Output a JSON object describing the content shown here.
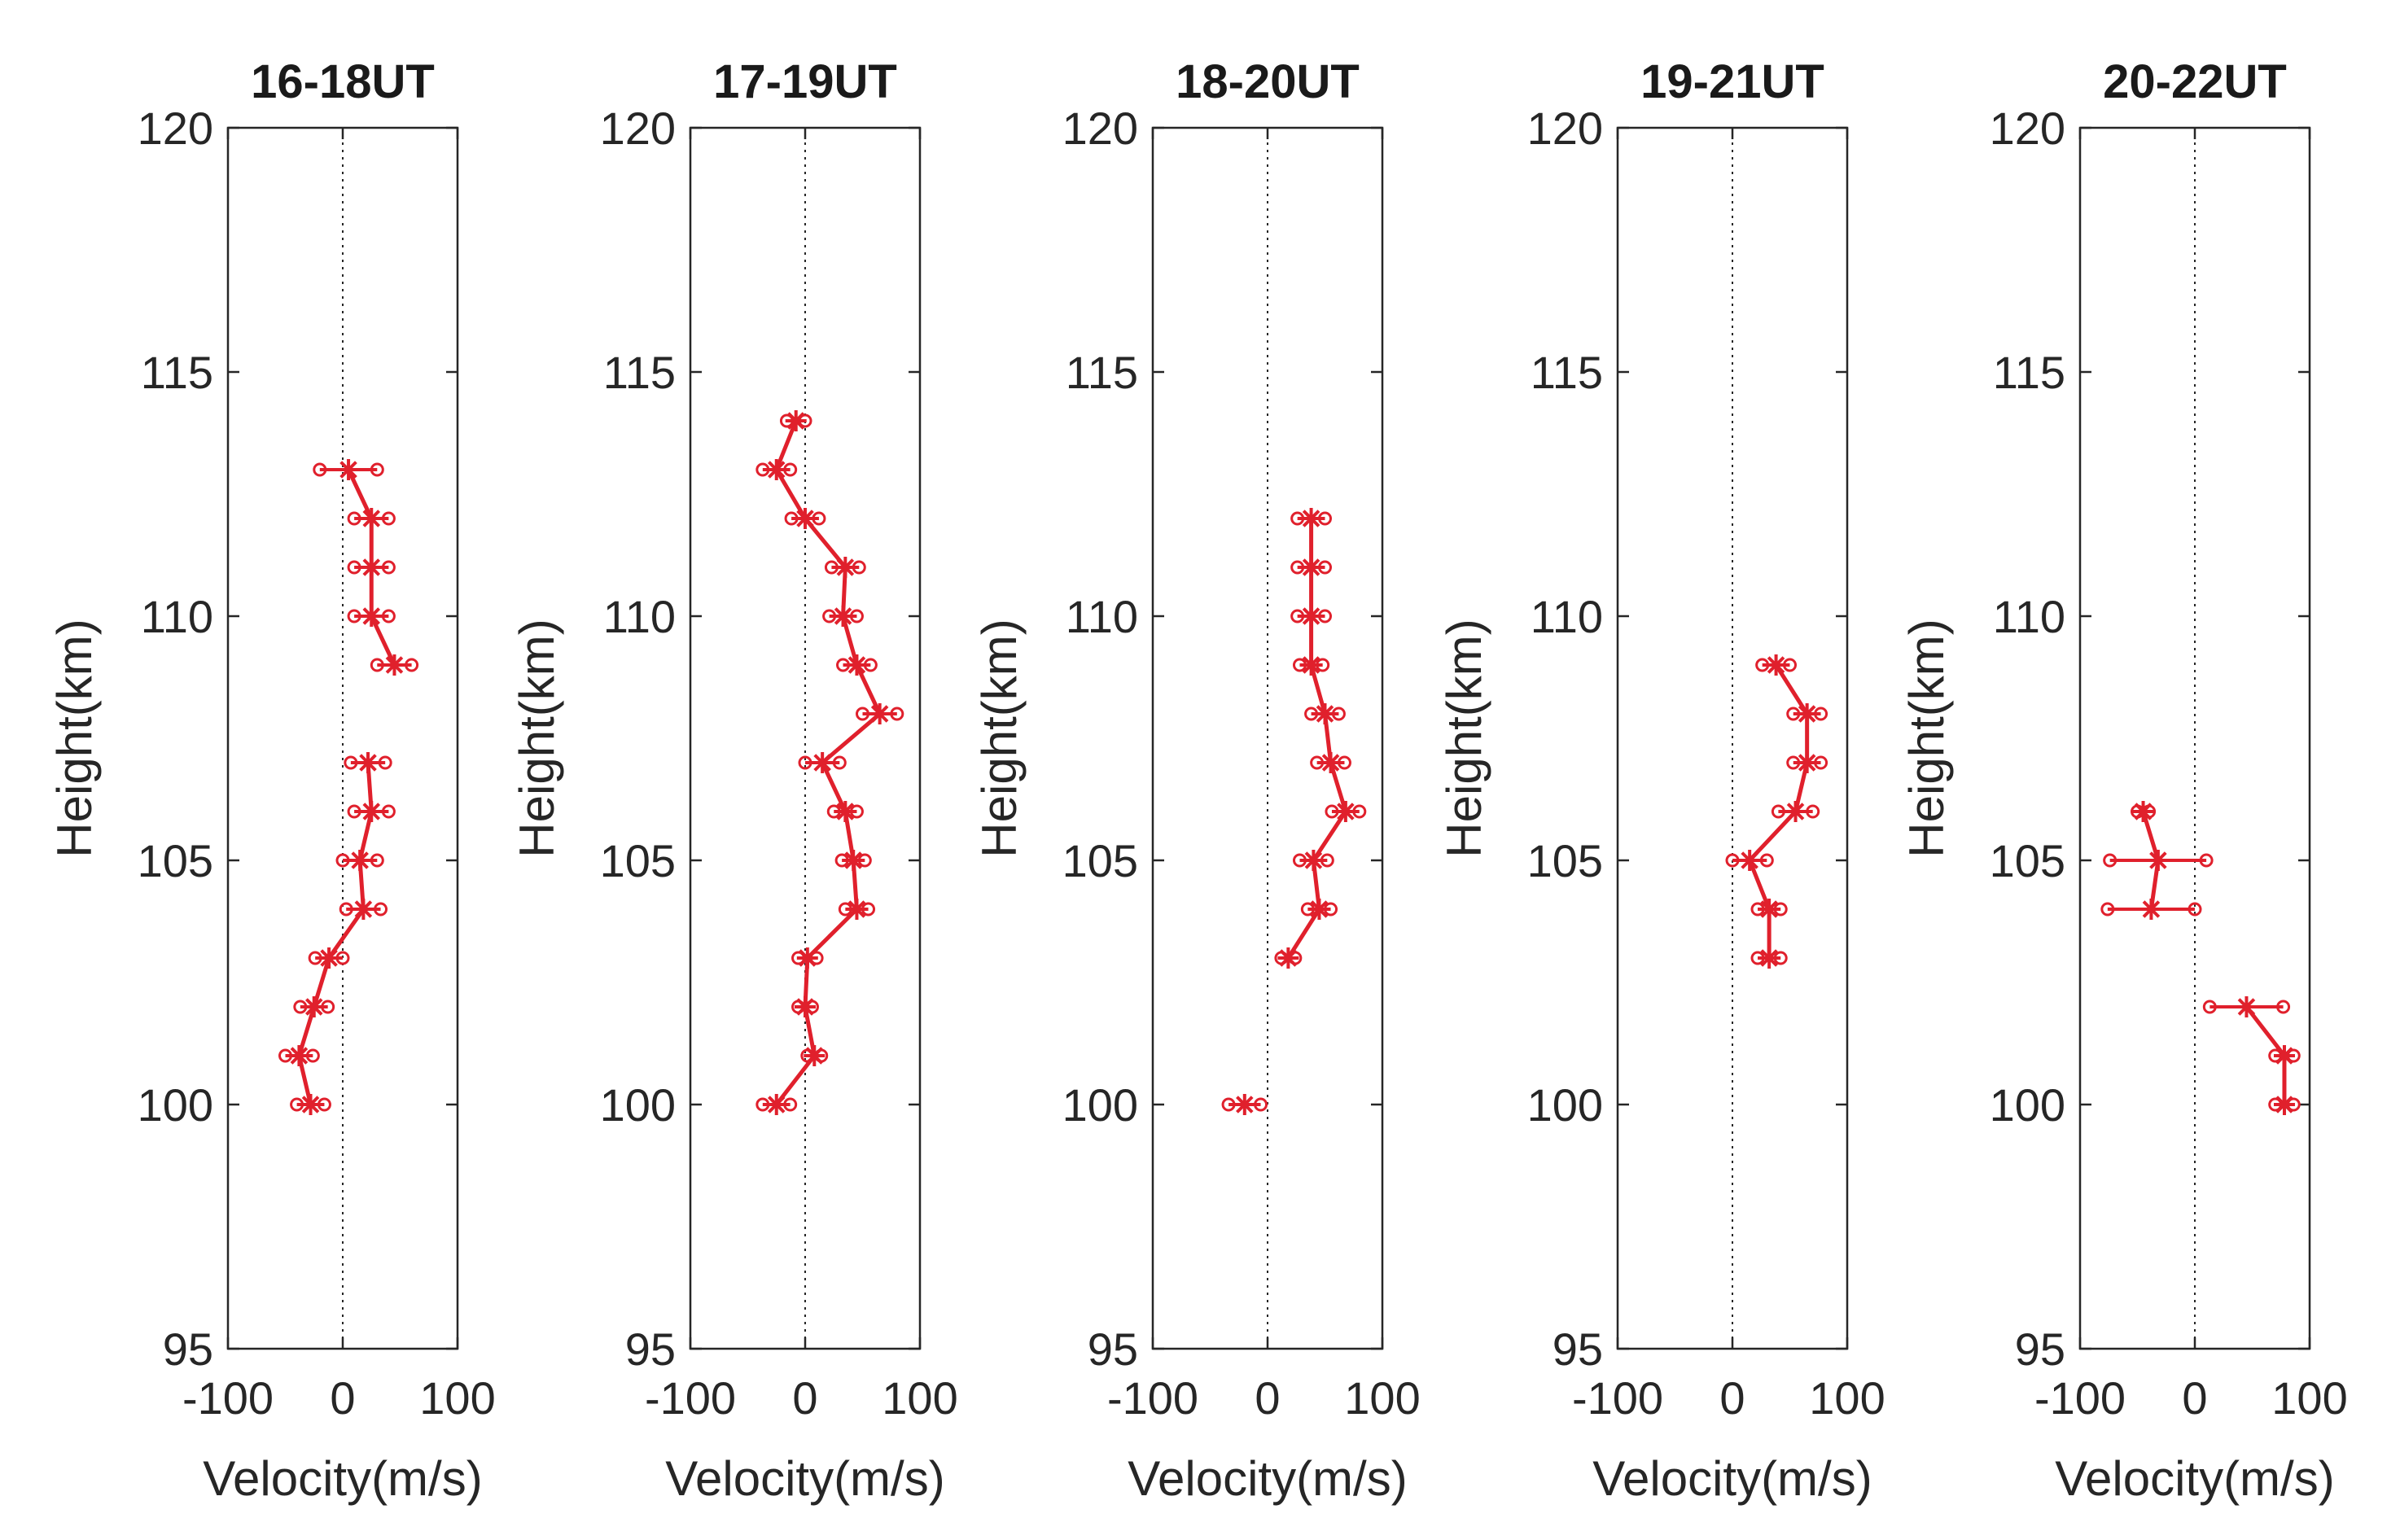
{
  "chart_data": [
    {
      "type": "line",
      "title": "16-18UT",
      "xlabel": "Velocity(m/s)",
      "ylabel": "Height(km)",
      "xlim": [
        -100,
        100
      ],
      "ylim": [
        95,
        120
      ],
      "xticks": [
        "-100",
        "0",
        "100"
      ],
      "yticks": [
        "95",
        "100",
        "105",
        "110",
        "115",
        "120"
      ],
      "segments": [
        [
          {
            "y": 113,
            "x": 5,
            "err": 25
          },
          {
            "y": 112,
            "x": 25,
            "err": 15
          },
          {
            "y": 111,
            "x": 25,
            "err": 15
          },
          {
            "y": 110,
            "x": 25,
            "err": 15
          },
          {
            "y": 109,
            "x": 45,
            "err": 15
          }
        ],
        [
          {
            "y": 107,
            "x": 22,
            "err": 15
          },
          {
            "y": 106,
            "x": 25,
            "err": 15
          },
          {
            "y": 105,
            "x": 15,
            "err": 15
          },
          {
            "y": 104,
            "x": 18,
            "err": 15
          },
          {
            "y": 103,
            "x": -12,
            "err": 12
          },
          {
            "y": 102,
            "x": -25,
            "err": 12
          },
          {
            "y": 101,
            "x": -38,
            "err": 12
          },
          {
            "y": 100,
            "x": -28,
            "err": 12
          }
        ]
      ]
    },
    {
      "type": "line",
      "title": "17-19UT",
      "xlabel": "Velocity(m/s)",
      "ylabel": "Height(km)",
      "xlim": [
        -100,
        100
      ],
      "ylim": [
        95,
        120
      ],
      "xticks": [
        "-100",
        "0",
        "100"
      ],
      "yticks": [
        "95",
        "100",
        "105",
        "110",
        "115",
        "120"
      ],
      "segments": [
        [
          {
            "y": 114,
            "x": -8,
            "err": 8
          },
          {
            "y": 113,
            "x": -25,
            "err": 12
          },
          {
            "y": 112,
            "x": 0,
            "err": 12
          },
          {
            "y": 111,
            "x": 35,
            "err": 12
          },
          {
            "y": 110,
            "x": 33,
            "err": 12
          },
          {
            "y": 109,
            "x": 45,
            "err": 12
          },
          {
            "y": 108,
            "x": 65,
            "err": 15
          },
          {
            "y": 107,
            "x": 15,
            "err": 15
          },
          {
            "y": 106,
            "x": 35,
            "err": 10
          },
          {
            "y": 105,
            "x": 42,
            "err": 10
          },
          {
            "y": 104,
            "x": 45,
            "err": 10
          },
          {
            "y": 103,
            "x": 2,
            "err": 8
          },
          {
            "y": 102,
            "x": 0,
            "err": 6
          },
          {
            "y": 101,
            "x": 8,
            "err": 6
          },
          {
            "y": 100,
            "x": -25,
            "err": 12
          }
        ]
      ]
    },
    {
      "type": "line",
      "title": "18-20UT",
      "xlabel": "Velocity(m/s)",
      "ylabel": "Height(km)",
      "xlim": [
        -100,
        100
      ],
      "ylim": [
        95,
        120
      ],
      "xticks": [
        "-100",
        "0",
        "100"
      ],
      "yticks": [
        "95",
        "100",
        "105",
        "110",
        "115",
        "120"
      ],
      "segments": [
        [
          {
            "y": 112,
            "x": 38,
            "err": 12
          },
          {
            "y": 111,
            "x": 38,
            "err": 12
          },
          {
            "y": 110,
            "x": 38,
            "err": 12
          },
          {
            "y": 109,
            "x": 38,
            "err": 10
          },
          {
            "y": 108,
            "x": 50,
            "err": 12
          },
          {
            "y": 107,
            "x": 55,
            "err": 12
          },
          {
            "y": 106,
            "x": 68,
            "err": 12
          },
          {
            "y": 105,
            "x": 40,
            "err": 12
          },
          {
            "y": 104,
            "x": 45,
            "err": 10
          },
          {
            "y": 103,
            "x": 18,
            "err": 6
          }
        ],
        [
          {
            "y": 100,
            "x": -20,
            "err": 14
          }
        ]
      ]
    },
    {
      "type": "line",
      "title": "19-21UT",
      "xlabel": "Velocity(m/s)",
      "ylabel": "Height(km)",
      "xlim": [
        -100,
        100
      ],
      "ylim": [
        95,
        120
      ],
      "xticks": [
        "-100",
        "0",
        "100"
      ],
      "yticks": [
        "95",
        "100",
        "105",
        "110",
        "115",
        "120"
      ],
      "segments": [
        [
          {
            "y": 109,
            "x": 38,
            "err": 12
          },
          {
            "y": 108,
            "x": 65,
            "err": 12
          },
          {
            "y": 107,
            "x": 65,
            "err": 12
          },
          {
            "y": 106,
            "x": 55,
            "err": 15
          },
          {
            "y": 105,
            "x": 15,
            "err": 15
          },
          {
            "y": 104,
            "x": 32,
            "err": 10
          },
          {
            "y": 103,
            "x": 32,
            "err": 10
          }
        ]
      ]
    },
    {
      "type": "line",
      "title": "20-22UT",
      "xlabel": "Velocity(m/s)",
      "ylabel": "Height(km)",
      "xlim": [
        -100,
        100
      ],
      "ylim": [
        95,
        120
      ],
      "xticks": [
        "-100",
        "0",
        "100"
      ],
      "yticks": [
        "95",
        "100",
        "105",
        "110",
        "115",
        "120"
      ],
      "segments": [
        [
          {
            "y": 106,
            "x": -45,
            "err": 5
          },
          {
            "y": 105,
            "x": -32,
            "err": 42
          },
          {
            "y": 104,
            "x": -38,
            "err": 38
          }
        ],
        [
          {
            "y": 102,
            "x": 45,
            "err": 32
          },
          {
            "y": 101,
            "x": 78,
            "err": 8
          },
          {
            "y": 100,
            "x": 78,
            "err": 8
          }
        ]
      ]
    }
  ],
  "colors": {
    "series": "#e0202c",
    "axis": "#262626"
  }
}
